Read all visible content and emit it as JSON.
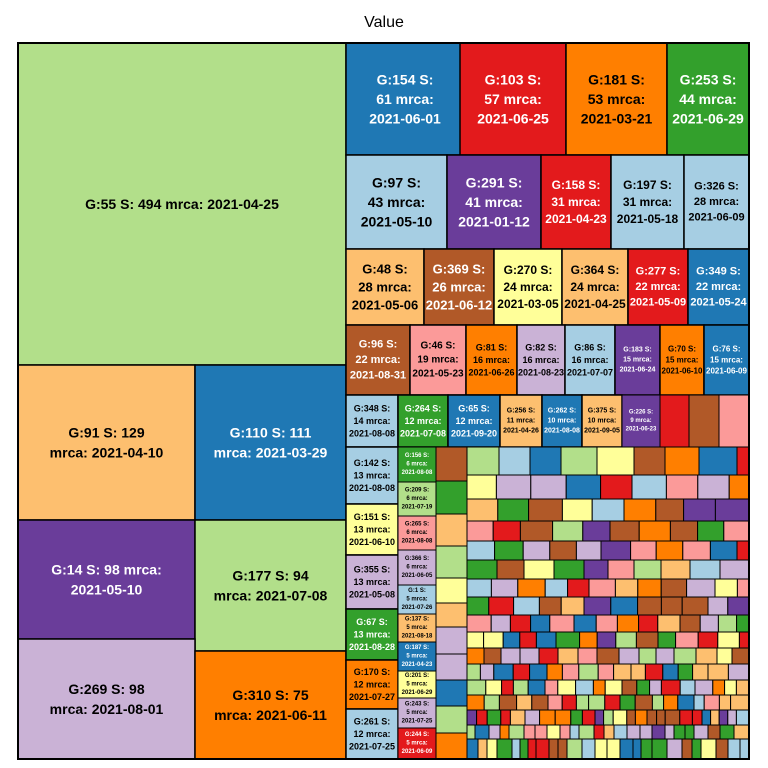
{
  "chart_data": {
    "type": "treemap",
    "title": "Value",
    "palette": [
      "#1F78B4",
      "#E31A1C",
      "#FF7F00",
      "#33A02C",
      "#A6CEE3",
      "#6A3D9A",
      "#FDBF6F",
      "#B15928",
      "#FFFF99",
      "#FB9A99",
      "#CAB2D6",
      "#B2DF8A"
    ],
    "labeled_tiles": [
      {
        "group": "55",
        "value": 494,
        "mrca": "2021-04-25",
        "color": "#B2DF8A",
        "text_color": "#000000"
      },
      {
        "group": "91",
        "value": 129,
        "mrca": "2021-04-10",
        "color": "#FDBF6F",
        "text_color": "#000000"
      },
      {
        "group": "110",
        "value": 111,
        "mrca": "2021-03-29",
        "color": "#1F78B4",
        "text_color": "#FFFFFF"
      },
      {
        "group": "14",
        "value": 98,
        "mrca": "2021-05-10",
        "color": "#6A3D9A",
        "text_color": "#FFFFFF"
      },
      {
        "group": "177",
        "value": 94,
        "mrca": "2021-07-08",
        "color": "#B2DF8A",
        "text_color": "#000000"
      },
      {
        "group": "269",
        "value": 98,
        "mrca": "2021-08-01",
        "color": "#CAB2D6",
        "text_color": "#000000"
      },
      {
        "group": "310",
        "value": 75,
        "mrca": "2021-06-11",
        "color": "#FF7F00",
        "text_color": "#000000"
      },
      {
        "group": "154",
        "value": 61,
        "mrca": "2021-06-01",
        "color": "#1F78B4",
        "text_color": "#FFFFFF"
      },
      {
        "group": "103",
        "value": 57,
        "mrca": "2021-06-25",
        "color": "#E31A1C",
        "text_color": "#FFFFFF"
      },
      {
        "group": "181",
        "value": 53,
        "mrca": "2021-03-21",
        "color": "#FF7F00",
        "text_color": "#000000"
      },
      {
        "group": "253",
        "value": 44,
        "mrca": "2021-06-29",
        "color": "#33A02C",
        "text_color": "#FFFFFF"
      },
      {
        "group": "97",
        "value": 43,
        "mrca": "2021-05-10",
        "color": "#A6CEE3",
        "text_color": "#000000"
      },
      {
        "group": "291",
        "value": 41,
        "mrca": "2021-01-12",
        "color": "#6A3D9A",
        "text_color": "#FFFFFF"
      },
      {
        "group": "158",
        "value": 31,
        "mrca": "2021-04-23",
        "color": "#E31A1C",
        "text_color": "#FFFFFF"
      },
      {
        "group": "197",
        "value": 31,
        "mrca": "2021-05-18",
        "color": "#A6CEE3",
        "text_color": "#000000"
      },
      {
        "group": "326",
        "value": 28,
        "mrca": "2021-06-09",
        "color": "#A6CEE3",
        "text_color": "#000000"
      },
      {
        "group": "48",
        "value": 28,
        "mrca": "2021-05-06",
        "color": "#FDBF6F",
        "text_color": "#000000"
      },
      {
        "group": "369",
        "value": 26,
        "mrca": "2021-06-12",
        "color": "#B15928",
        "text_color": "#FFFFFF"
      },
      {
        "group": "270",
        "value": 24,
        "mrca": "2021-03-05",
        "color": "#FFFF99",
        "text_color": "#000000"
      },
      {
        "group": "364",
        "value": 24,
        "mrca": "2021-04-25",
        "color": "#FDBF6F",
        "text_color": "#000000"
      },
      {
        "group": "277",
        "value": 22,
        "mrca": "2021-05-09",
        "color": "#E31A1C",
        "text_color": "#FFFFFF"
      },
      {
        "group": "349",
        "value": 22,
        "mrca": "2021-05-24",
        "color": "#1F78B4",
        "text_color": "#FFFFFF"
      },
      {
        "group": "96",
        "value": 22,
        "mrca": "2021-08-31",
        "color": "#B15928",
        "text_color": "#FFFFFF"
      },
      {
        "group": "46",
        "value": 19,
        "mrca": "2021-05-23",
        "color": "#FB9A99",
        "text_color": "#000000"
      },
      {
        "group": "81",
        "value": 16,
        "mrca": "2021-06-26",
        "color": "#FF7F00",
        "text_color": "#000000"
      },
      {
        "group": "82",
        "value": 16,
        "mrca": "2021-08-23",
        "color": "#CAB2D6",
        "text_color": "#000000"
      },
      {
        "group": "86",
        "value": 16,
        "mrca": "2021-07-07",
        "color": "#A6CEE3",
        "text_color": "#000000"
      },
      {
        "group": "183",
        "value": 15,
        "mrca": "2021-06-24",
        "color": "#6A3D9A",
        "text_color": "#FFFFFF"
      },
      {
        "group": "70",
        "value": 15,
        "mrca": "2021-06-10",
        "color": "#FF7F00",
        "text_color": "#000000"
      },
      {
        "group": "76",
        "value": 15,
        "mrca": "2021-06-09",
        "color": "#1F78B4",
        "text_color": "#FFFFFF"
      },
      {
        "group": "348",
        "value": 14,
        "mrca": "2021-08-08",
        "color": "#A6CEE3",
        "text_color": "#000000"
      },
      {
        "group": "264",
        "value": 12,
        "mrca": "2021-07-08",
        "color": "#33A02C",
        "text_color": "#FFFFFF"
      },
      {
        "group": "65",
        "value": 12,
        "mrca": "2021-09-20",
        "color": "#1F78B4",
        "text_color": "#FFFFFF"
      },
      {
        "group": "256",
        "value": 11,
        "mrca": "2021-04-26",
        "color": "#FDBF6F",
        "text_color": "#000000"
      },
      {
        "group": "262",
        "value": 10,
        "mrca": "2021-08-08",
        "color": "#1F78B4",
        "text_color": "#FFFFFF"
      },
      {
        "group": "375",
        "value": 10,
        "mrca": "2021-09-05",
        "color": "#FDBF6F",
        "text_color": "#000000"
      },
      {
        "group": "226",
        "value": 9,
        "mrca": "2021-06-23",
        "color": "#6A3D9A",
        "text_color": "#FFFFFF"
      },
      {
        "group": "142",
        "value": 13,
        "mrca": "2021-08-08",
        "color": "#A6CEE3",
        "text_color": "#000000"
      },
      {
        "group": "151",
        "value": 13,
        "mrca": "2021-06-10",
        "color": "#FFFF99",
        "text_color": "#000000"
      },
      {
        "group": "355",
        "value": 13,
        "mrca": "2021-05-08",
        "color": "#CAB2D6",
        "text_color": "#000000"
      },
      {
        "group": "67",
        "value": 13,
        "mrca": "2021-08-28",
        "color": "#33A02C",
        "text_color": "#FFFFFF"
      },
      {
        "group": "170",
        "value": 12,
        "mrca": "2021-07-27",
        "color": "#FF7F00",
        "text_color": "#000000"
      },
      {
        "group": "261",
        "value": 12,
        "mrca": "2021-07-25",
        "color": "#A6CEE3",
        "text_color": "#000000"
      },
      {
        "group": "156",
        "value": 6,
        "mrca": "2021-08-08",
        "color": "#33A02C",
        "text_color": "#FFFFFF"
      },
      {
        "group": "209",
        "value": 6,
        "mrca": "2021-07-19",
        "color": "#B2DF8A",
        "text_color": "#000000"
      },
      {
        "group": "265",
        "value": 6,
        "mrca": "2021-08-08",
        "color": "#FB9A99",
        "text_color": "#000000"
      },
      {
        "group": "366",
        "value": 6,
        "mrca": "2021-06-05",
        "color": "#CAB2D6",
        "text_color": "#000000"
      },
      {
        "group": "1",
        "value": 5,
        "mrca": "2021-07-26",
        "color": "#A6CEE3",
        "text_color": "#000000"
      },
      {
        "group": "137",
        "value": 5,
        "mrca": "2021-08-18",
        "color": "#FDBF6F",
        "text_color": "#000000"
      },
      {
        "group": "187",
        "value": 5,
        "mrca": "2021-04-23",
        "color": "#1F78B4",
        "text_color": "#FFFFFF"
      },
      {
        "group": "201",
        "value": 5,
        "mrca": "2021-06-29",
        "color": "#FFFF99",
        "text_color": "#000000"
      },
      {
        "group": "243",
        "value": 5,
        "mrca": "2021-07-25",
        "color": "#CAB2D6",
        "text_color": "#000000"
      },
      {
        "group": "244",
        "value": 5,
        "mrca": "2021-06-09",
        "color": "#E31A1C",
        "text_color": "#FFFFFF"
      }
    ]
  }
}
